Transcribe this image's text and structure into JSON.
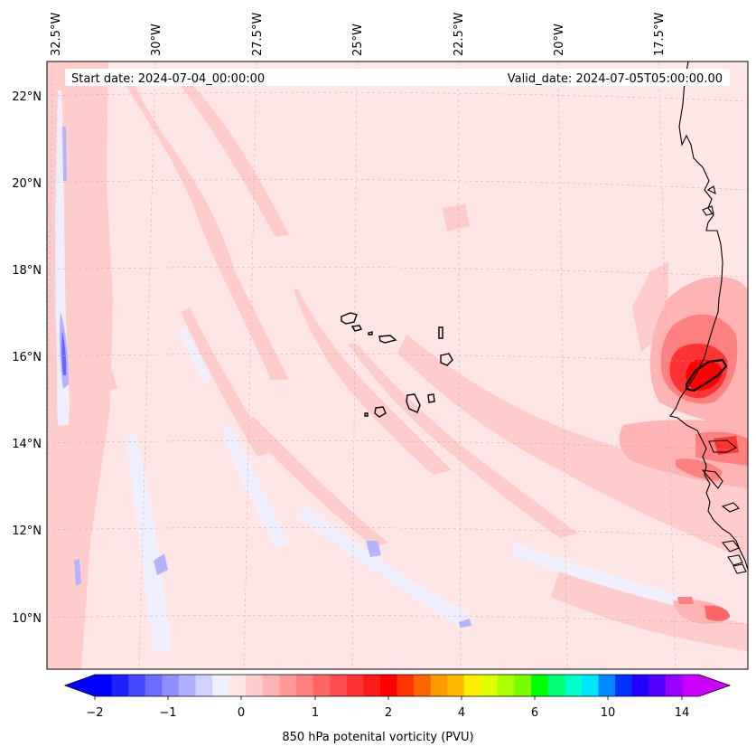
{
  "map": {
    "start_date_label": "Start date: 2024-07-04_00:00:00",
    "valid_date_label": "Valid_date: 2024-07-05T05:00:00.00",
    "longitude_labels": [
      "32.5°W",
      "30°W",
      "27.5°W",
      "25°W",
      "22.5°W",
      "20°W",
      "17.5°W"
    ],
    "latitude_labels": [
      "22°N",
      "20°N",
      "18°N",
      "16°N",
      "14°N",
      "12°N",
      "10°N"
    ],
    "colors": {
      "background_light_pink": "#ffe6e6",
      "light_pink": "#ffcccc",
      "pink": "#ffb3b3",
      "salmon": "#ff8080",
      "red": "#ff3333",
      "deep_red": "#ff0000",
      "pale_blue": "#eeeeff",
      "light_blue": "#b3b3ff",
      "blue": "#6666ff",
      "coastline": "#000000"
    }
  },
  "colorbar": {
    "label": "850 hPa potenital vorticity (PVU)",
    "tick_labels": [
      "−2",
      "−1",
      "0",
      "1",
      "2",
      "4",
      "6",
      "10",
      "14"
    ],
    "colors": [
      "#0000ff",
      "#2020ff",
      "#4848ff",
      "#6c6cff",
      "#8e8eff",
      "#b0b0ff",
      "#d2d2ff",
      "#eeeeff",
      "#ffe6e6",
      "#ffcccc",
      "#ffb3b3",
      "#ff9999",
      "#ff8080",
      "#ff6666",
      "#ff4d4d",
      "#ff3333",
      "#ff1a1a",
      "#ff0000",
      "#ff3300",
      "#ff6600",
      "#ff9900",
      "#ffbb00",
      "#ffee00",
      "#ddff00",
      "#aaff00",
      "#77ff00",
      "#00ff00",
      "#00ff77",
      "#00ffcc",
      "#00e5ff",
      "#0088ff",
      "#0033ff",
      "#2200ff",
      "#5500ff",
      "#9900ff",
      "#cc00ff"
    ]
  }
}
